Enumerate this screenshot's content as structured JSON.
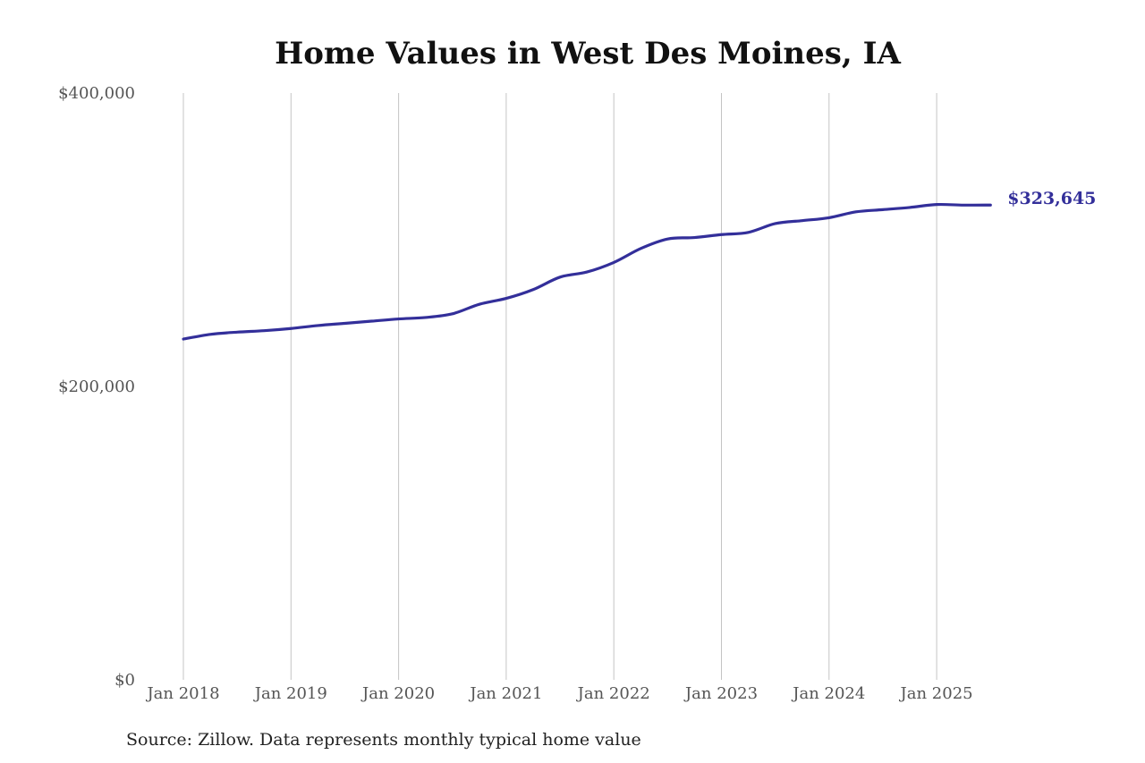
{
  "chart_data": {
    "type": "line",
    "title": "Home Values in West Des Moines, IA",
    "source": "Source: Zillow. Data represents monthly typical home value",
    "xlabel": "",
    "ylabel": "",
    "ylim": [
      0,
      400000
    ],
    "yticks": [
      0,
      200000,
      400000
    ],
    "ytick_labels": [
      "$0",
      "$200,000",
      "$400,000"
    ],
    "xticks": [
      "2018-01",
      "2019-01",
      "2020-01",
      "2021-01",
      "2022-01",
      "2023-01",
      "2024-01",
      "2025-01"
    ],
    "xtick_labels": [
      "Jan 2018",
      "Jan 2019",
      "Jan 2020",
      "Jan 2021",
      "Jan 2022",
      "Jan 2023",
      "Jan 2024",
      "Jan 2025"
    ],
    "grid": "vertical",
    "line_color": "#332f9a",
    "end_label": "$323,645",
    "x": [
      "2018-01",
      "2018-04",
      "2018-07",
      "2018-10",
      "2019-01",
      "2019-04",
      "2019-07",
      "2019-10",
      "2020-01",
      "2020-04",
      "2020-07",
      "2020-10",
      "2021-01",
      "2021-04",
      "2021-07",
      "2021-10",
      "2022-01",
      "2022-04",
      "2022-07",
      "2022-10",
      "2023-01",
      "2023-04",
      "2023-07",
      "2023-10",
      "2024-01",
      "2024-04",
      "2024-07",
      "2024-10",
      "2025-01",
      "2025-04",
      "2025-07"
    ],
    "values": [
      232300,
      235500,
      237000,
      238000,
      239500,
      241500,
      243000,
      244500,
      246000,
      247000,
      249500,
      256000,
      260000,
      266000,
      274500,
      278000,
      284500,
      294000,
      300500,
      301500,
      303500,
      305000,
      311000,
      313000,
      315000,
      319000,
      320500,
      322000,
      324000,
      323600,
      323645
    ]
  }
}
